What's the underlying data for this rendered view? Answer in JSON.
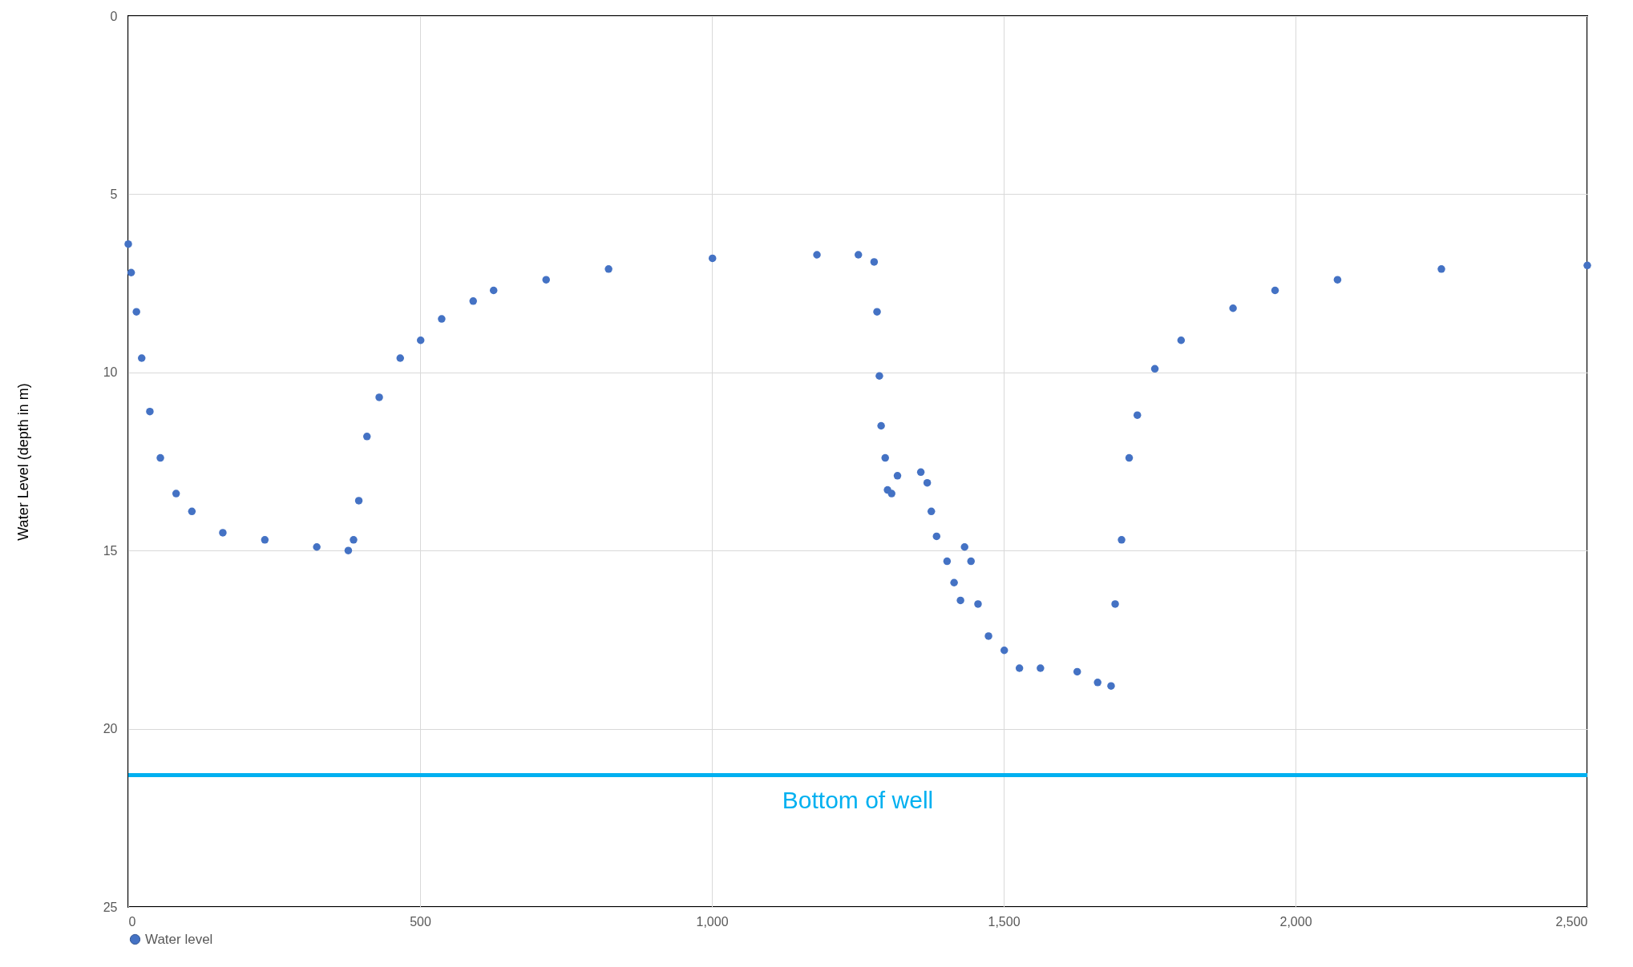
{
  "chart_data": {
    "type": "scatter",
    "ylabel": "Water Level (depth in m)",
    "xlim": [
      0,
      2500
    ],
    "xticks": [
      0,
      500,
      {
        "value": 1000,
        "label": "1,000"
      },
      {
        "value": 1500,
        "label": "1,500"
      },
      {
        "value": 2000,
        "label": "2,000"
      },
      {
        "value": 2500,
        "label": "2,500"
      }
    ],
    "ylim": [
      25,
      0
    ],
    "yticks": [
      0,
      5,
      10,
      15,
      20,
      25
    ],
    "grid": true,
    "legend": "bottom",
    "marker": "circle",
    "ref_lines": [
      {
        "axis": "y",
        "value": 21.3,
        "label": "Bottom of well",
        "color": "#00b0f0"
      }
    ],
    "series": [
      {
        "name": "Water level",
        "color": "#4472c4",
        "x": [
          0,
          5,
          14,
          23,
          37,
          55,
          82,
          109,
          162,
          234,
          323,
          377,
          386,
          395,
          409,
          430,
          466,
          501,
          537,
          591,
          626,
          716,
          823,
          1001,
          1180,
          1251,
          1278,
          1283,
          1287,
          1290,
          1297,
          1301,
          1308,
          1318,
          1358,
          1369,
          1376,
          1385,
          1403,
          1415,
          1426,
          1433,
          1444,
          1456,
          1474,
          1501,
          1527,
          1563,
          1626,
          1661,
          1684,
          1691,
          1702,
          1715,
          1729,
          1759,
          1804,
          1893,
          1965,
          2072,
          2250,
          2500
        ],
        "values": [
          6.4,
          7.2,
          8.3,
          9.6,
          11.1,
          12.4,
          13.4,
          13.9,
          14.5,
          14.7,
          14.9,
          15.0,
          14.7,
          13.6,
          11.8,
          10.7,
          9.6,
          9.1,
          8.5,
          8.0,
          7.7,
          7.4,
          7.1,
          6.8,
          6.7,
          6.7,
          6.9,
          8.3,
          10.1,
          11.5,
          12.4,
          13.3,
          13.4,
          12.9,
          12.8,
          13.1,
          13.9,
          14.6,
          15.3,
          15.9,
          16.4,
          14.9,
          15.3,
          16.5,
          17.4,
          17.8,
          18.3,
          18.3,
          18.4,
          18.7,
          18.8,
          16.5,
          14.7,
          12.4,
          11.2,
          9.9,
          9.1,
          8.2,
          7.7,
          7.4,
          7.1,
          7.0
        ]
      }
    ]
  }
}
